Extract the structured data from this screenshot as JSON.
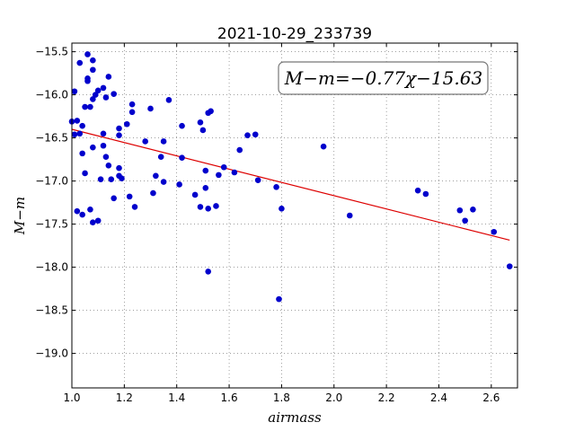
{
  "chart_data": {
    "type": "scatter",
    "title": "2021-10-29_233739",
    "xlabel": "airmass",
    "ylabel": "M−m",
    "annotation": "M−m=−0.77χ−15.63",
    "xlim": [
      1.0,
      2.7
    ],
    "ylim": [
      -19.4,
      -15.4
    ],
    "y_inverted": true,
    "grid": true,
    "xticks": [
      "1.0",
      "1.2",
      "1.4",
      "1.6",
      "1.8",
      "2.0",
      "2.2",
      "2.4",
      "2.6"
    ],
    "xtick_values": [
      1.0,
      1.2,
      1.4,
      1.6,
      1.8,
      2.0,
      2.2,
      2.4,
      2.6
    ],
    "yticks": [
      "−15.5",
      "−16.0",
      "−16.5",
      "−17.0",
      "−17.5",
      "−18.0",
      "−18.5",
      "−19.0"
    ],
    "ytick_values": [
      -15.5,
      -16.0,
      -16.5,
      -17.0,
      -17.5,
      -18.0,
      -18.5,
      -19.0
    ],
    "point_color": "#0000cc",
    "fit_color": "#dd0000",
    "fit": {
      "slope": -0.77,
      "intercept": -15.63,
      "x_range": [
        1.0,
        2.67
      ]
    },
    "points": [
      {
        "x": 1.0,
        "y": -16.31
      },
      {
        "x": 1.01,
        "y": -15.96
      },
      {
        "x": 1.01,
        "y": -16.46
      },
      {
        "x": 1.02,
        "y": -16.3
      },
      {
        "x": 1.02,
        "y": -17.35
      },
      {
        "x": 1.03,
        "y": -15.63
      },
      {
        "x": 1.03,
        "y": -16.45
      },
      {
        "x": 1.04,
        "y": -16.36
      },
      {
        "x": 1.04,
        "y": -16.68
      },
      {
        "x": 1.04,
        "y": -17.39
      },
      {
        "x": 1.05,
        "y": -16.91
      },
      {
        "x": 1.05,
        "y": -16.14
      },
      {
        "x": 1.06,
        "y": -15.53
      },
      {
        "x": 1.06,
        "y": -15.81
      },
      {
        "x": 1.06,
        "y": -15.84
      },
      {
        "x": 1.07,
        "y": -16.14
      },
      {
        "x": 1.07,
        "y": -17.33
      },
      {
        "x": 1.08,
        "y": -15.6
      },
      {
        "x": 1.08,
        "y": -15.71
      },
      {
        "x": 1.08,
        "y": -16.05
      },
      {
        "x": 1.08,
        "y": -16.61
      },
      {
        "x": 1.08,
        "y": -17.48
      },
      {
        "x": 1.09,
        "y": -16.0
      },
      {
        "x": 1.1,
        "y": -15.95
      },
      {
        "x": 1.1,
        "y": -17.46
      },
      {
        "x": 1.11,
        "y": -16.98
      },
      {
        "x": 1.12,
        "y": -15.92
      },
      {
        "x": 1.12,
        "y": -16.45
      },
      {
        "x": 1.12,
        "y": -16.59
      },
      {
        "x": 1.13,
        "y": -16.03
      },
      {
        "x": 1.13,
        "y": -16.72
      },
      {
        "x": 1.14,
        "y": -15.79
      },
      {
        "x": 1.14,
        "y": -16.82
      },
      {
        "x": 1.15,
        "y": -16.98
      },
      {
        "x": 1.16,
        "y": -17.2
      },
      {
        "x": 1.16,
        "y": -15.99
      },
      {
        "x": 1.18,
        "y": -16.39
      },
      {
        "x": 1.18,
        "y": -16.47
      },
      {
        "x": 1.18,
        "y": -16.85
      },
      {
        "x": 1.18,
        "y": -16.94
      },
      {
        "x": 1.19,
        "y": -16.97
      },
      {
        "x": 1.21,
        "y": -16.34
      },
      {
        "x": 1.22,
        "y": -17.18
      },
      {
        "x": 1.23,
        "y": -16.11
      },
      {
        "x": 1.23,
        "y": -16.2
      },
      {
        "x": 1.24,
        "y": -17.3
      },
      {
        "x": 1.28,
        "y": -16.54
      },
      {
        "x": 1.3,
        "y": -16.16
      },
      {
        "x": 1.31,
        "y": -17.14
      },
      {
        "x": 1.32,
        "y": -16.94
      },
      {
        "x": 1.34,
        "y": -16.72
      },
      {
        "x": 1.35,
        "y": -16.54
      },
      {
        "x": 1.35,
        "y": -17.01
      },
      {
        "x": 1.37,
        "y": -16.06
      },
      {
        "x": 1.41,
        "y": -17.04
      },
      {
        "x": 1.42,
        "y": -16.36
      },
      {
        "x": 1.42,
        "y": -16.73
      },
      {
        "x": 1.47,
        "y": -17.16
      },
      {
        "x": 1.49,
        "y": -17.3
      },
      {
        "x": 1.49,
        "y": -16.32
      },
      {
        "x": 1.5,
        "y": -16.41
      },
      {
        "x": 1.51,
        "y": -16.88
      },
      {
        "x": 1.51,
        "y": -17.08
      },
      {
        "x": 1.52,
        "y": -16.21
      },
      {
        "x": 1.52,
        "y": -17.32
      },
      {
        "x": 1.52,
        "y": -18.05
      },
      {
        "x": 1.53,
        "y": -16.19
      },
      {
        "x": 1.55,
        "y": -17.29
      },
      {
        "x": 1.56,
        "y": -16.93
      },
      {
        "x": 1.58,
        "y": -16.84
      },
      {
        "x": 1.62,
        "y": -16.9
      },
      {
        "x": 1.64,
        "y": -16.64
      },
      {
        "x": 1.67,
        "y": -16.47
      },
      {
        "x": 1.7,
        "y": -16.46
      },
      {
        "x": 1.71,
        "y": -16.99
      },
      {
        "x": 1.78,
        "y": -17.07
      },
      {
        "x": 1.79,
        "y": -18.37
      },
      {
        "x": 1.8,
        "y": -17.32
      },
      {
        "x": 1.96,
        "y": -16.6
      },
      {
        "x": 2.06,
        "y": -17.4
      },
      {
        "x": 2.32,
        "y": -17.11
      },
      {
        "x": 2.35,
        "y": -17.15
      },
      {
        "x": 2.48,
        "y": -17.34
      },
      {
        "x": 2.5,
        "y": -17.46
      },
      {
        "x": 2.53,
        "y": -17.33
      },
      {
        "x": 2.61,
        "y": -17.59
      },
      {
        "x": 2.67,
        "y": -17.99
      }
    ]
  }
}
